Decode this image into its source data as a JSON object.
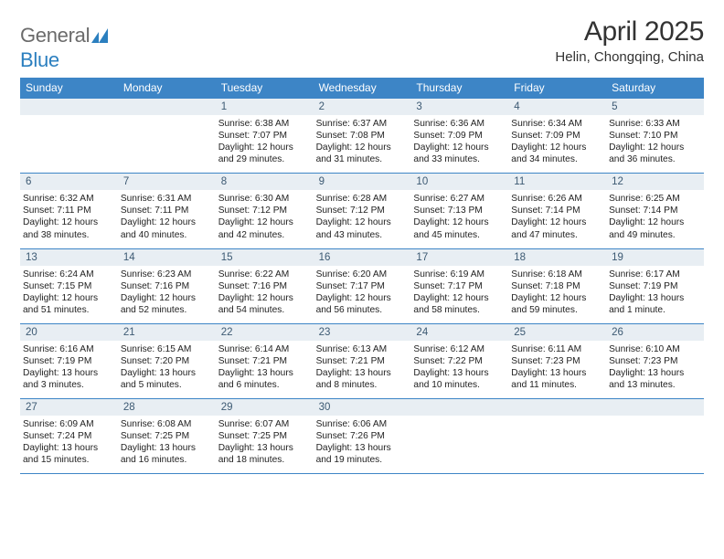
{
  "brand": {
    "word1": "General",
    "word2": "Blue",
    "text_color": "#6b6b6b",
    "blue_color": "#2b7fbf",
    "mark_color": "#2b7fbf"
  },
  "header": {
    "title": "April 2025",
    "subtitle": "Helin, Chongqing, China"
  },
  "calendar": {
    "header_bg": "#3d85c6",
    "header_text_color": "#ffffff",
    "daynum_bg": "#e8eef3",
    "daynum_color": "#3d5a73",
    "border_color": "#3d85c6",
    "day_names": [
      "Sunday",
      "Monday",
      "Tuesday",
      "Wednesday",
      "Thursday",
      "Friday",
      "Saturday"
    ],
    "weeks": [
      [
        {
          "n": "",
          "sr": "",
          "ss": "",
          "d1": "",
          "d2": ""
        },
        {
          "n": "",
          "sr": "",
          "ss": "",
          "d1": "",
          "d2": ""
        },
        {
          "n": "1",
          "sr": "Sunrise: 6:38 AM",
          "ss": "Sunset: 7:07 PM",
          "d1": "Daylight: 12 hours",
          "d2": "and 29 minutes."
        },
        {
          "n": "2",
          "sr": "Sunrise: 6:37 AM",
          "ss": "Sunset: 7:08 PM",
          "d1": "Daylight: 12 hours",
          "d2": "and 31 minutes."
        },
        {
          "n": "3",
          "sr": "Sunrise: 6:36 AM",
          "ss": "Sunset: 7:09 PM",
          "d1": "Daylight: 12 hours",
          "d2": "and 33 minutes."
        },
        {
          "n": "4",
          "sr": "Sunrise: 6:34 AM",
          "ss": "Sunset: 7:09 PM",
          "d1": "Daylight: 12 hours",
          "d2": "and 34 minutes."
        },
        {
          "n": "5",
          "sr": "Sunrise: 6:33 AM",
          "ss": "Sunset: 7:10 PM",
          "d1": "Daylight: 12 hours",
          "d2": "and 36 minutes."
        }
      ],
      [
        {
          "n": "6",
          "sr": "Sunrise: 6:32 AM",
          "ss": "Sunset: 7:11 PM",
          "d1": "Daylight: 12 hours",
          "d2": "and 38 minutes."
        },
        {
          "n": "7",
          "sr": "Sunrise: 6:31 AM",
          "ss": "Sunset: 7:11 PM",
          "d1": "Daylight: 12 hours",
          "d2": "and 40 minutes."
        },
        {
          "n": "8",
          "sr": "Sunrise: 6:30 AM",
          "ss": "Sunset: 7:12 PM",
          "d1": "Daylight: 12 hours",
          "d2": "and 42 minutes."
        },
        {
          "n": "9",
          "sr": "Sunrise: 6:28 AM",
          "ss": "Sunset: 7:12 PM",
          "d1": "Daylight: 12 hours",
          "d2": "and 43 minutes."
        },
        {
          "n": "10",
          "sr": "Sunrise: 6:27 AM",
          "ss": "Sunset: 7:13 PM",
          "d1": "Daylight: 12 hours",
          "d2": "and 45 minutes."
        },
        {
          "n": "11",
          "sr": "Sunrise: 6:26 AM",
          "ss": "Sunset: 7:14 PM",
          "d1": "Daylight: 12 hours",
          "d2": "and 47 minutes."
        },
        {
          "n": "12",
          "sr": "Sunrise: 6:25 AM",
          "ss": "Sunset: 7:14 PM",
          "d1": "Daylight: 12 hours",
          "d2": "and 49 minutes."
        }
      ],
      [
        {
          "n": "13",
          "sr": "Sunrise: 6:24 AM",
          "ss": "Sunset: 7:15 PM",
          "d1": "Daylight: 12 hours",
          "d2": "and 51 minutes."
        },
        {
          "n": "14",
          "sr": "Sunrise: 6:23 AM",
          "ss": "Sunset: 7:16 PM",
          "d1": "Daylight: 12 hours",
          "d2": "and 52 minutes."
        },
        {
          "n": "15",
          "sr": "Sunrise: 6:22 AM",
          "ss": "Sunset: 7:16 PM",
          "d1": "Daylight: 12 hours",
          "d2": "and 54 minutes."
        },
        {
          "n": "16",
          "sr": "Sunrise: 6:20 AM",
          "ss": "Sunset: 7:17 PM",
          "d1": "Daylight: 12 hours",
          "d2": "and 56 minutes."
        },
        {
          "n": "17",
          "sr": "Sunrise: 6:19 AM",
          "ss": "Sunset: 7:17 PM",
          "d1": "Daylight: 12 hours",
          "d2": "and 58 minutes."
        },
        {
          "n": "18",
          "sr": "Sunrise: 6:18 AM",
          "ss": "Sunset: 7:18 PM",
          "d1": "Daylight: 12 hours",
          "d2": "and 59 minutes."
        },
        {
          "n": "19",
          "sr": "Sunrise: 6:17 AM",
          "ss": "Sunset: 7:19 PM",
          "d1": "Daylight: 13 hours",
          "d2": "and 1 minute."
        }
      ],
      [
        {
          "n": "20",
          "sr": "Sunrise: 6:16 AM",
          "ss": "Sunset: 7:19 PM",
          "d1": "Daylight: 13 hours",
          "d2": "and 3 minutes."
        },
        {
          "n": "21",
          "sr": "Sunrise: 6:15 AM",
          "ss": "Sunset: 7:20 PM",
          "d1": "Daylight: 13 hours",
          "d2": "and 5 minutes."
        },
        {
          "n": "22",
          "sr": "Sunrise: 6:14 AM",
          "ss": "Sunset: 7:21 PM",
          "d1": "Daylight: 13 hours",
          "d2": "and 6 minutes."
        },
        {
          "n": "23",
          "sr": "Sunrise: 6:13 AM",
          "ss": "Sunset: 7:21 PM",
          "d1": "Daylight: 13 hours",
          "d2": "and 8 minutes."
        },
        {
          "n": "24",
          "sr": "Sunrise: 6:12 AM",
          "ss": "Sunset: 7:22 PM",
          "d1": "Daylight: 13 hours",
          "d2": "and 10 minutes."
        },
        {
          "n": "25",
          "sr": "Sunrise: 6:11 AM",
          "ss": "Sunset: 7:23 PM",
          "d1": "Daylight: 13 hours",
          "d2": "and 11 minutes."
        },
        {
          "n": "26",
          "sr": "Sunrise: 6:10 AM",
          "ss": "Sunset: 7:23 PM",
          "d1": "Daylight: 13 hours",
          "d2": "and 13 minutes."
        }
      ],
      [
        {
          "n": "27",
          "sr": "Sunrise: 6:09 AM",
          "ss": "Sunset: 7:24 PM",
          "d1": "Daylight: 13 hours",
          "d2": "and 15 minutes."
        },
        {
          "n": "28",
          "sr": "Sunrise: 6:08 AM",
          "ss": "Sunset: 7:25 PM",
          "d1": "Daylight: 13 hours",
          "d2": "and 16 minutes."
        },
        {
          "n": "29",
          "sr": "Sunrise: 6:07 AM",
          "ss": "Sunset: 7:25 PM",
          "d1": "Daylight: 13 hours",
          "d2": "and 18 minutes."
        },
        {
          "n": "30",
          "sr": "Sunrise: 6:06 AM",
          "ss": "Sunset: 7:26 PM",
          "d1": "Daylight: 13 hours",
          "d2": "and 19 minutes."
        },
        {
          "n": "",
          "sr": "",
          "ss": "",
          "d1": "",
          "d2": ""
        },
        {
          "n": "",
          "sr": "",
          "ss": "",
          "d1": "",
          "d2": ""
        },
        {
          "n": "",
          "sr": "",
          "ss": "",
          "d1": "",
          "d2": ""
        }
      ]
    ]
  }
}
